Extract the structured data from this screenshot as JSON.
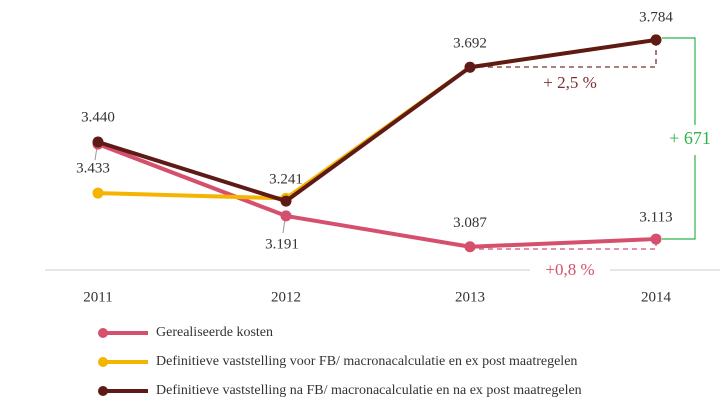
{
  "chart_data": {
    "type": "line",
    "categories": [
      "2011",
      "2012",
      "2013",
      "2014"
    ],
    "series": [
      {
        "name": "Gerealiseerde kosten",
        "color": "#d6506e",
        "values": [
          3433,
          3191,
          3087,
          3113
        ],
        "value_labels": [
          "3.433",
          "3.191",
          "3.087",
          "3.113"
        ]
      },
      {
        "name": "Definitieve vaststelling voor FB/ macronacalculatie en ex post maatregelen",
        "color": "#f5b400",
        "values": [
          3268,
          3250,
          3692,
          3784
        ],
        "value_labels": [
          null,
          null,
          null,
          null
        ]
      },
      {
        "name": "Definitieve vaststelling na FB/ macronacalculatie en na ex post maatregelen",
        "color": "#5e1a16",
        "values": [
          3440,
          3241,
          3692,
          3784
        ],
        "value_labels": [
          "3.440",
          "3.241",
          "3.692",
          "3.784"
        ]
      }
    ],
    "ylim": [
      3000,
      3900
    ],
    "annotations": [
      "+ 2,5 %",
      "+0,8 %",
      "+ 671"
    ]
  }
}
